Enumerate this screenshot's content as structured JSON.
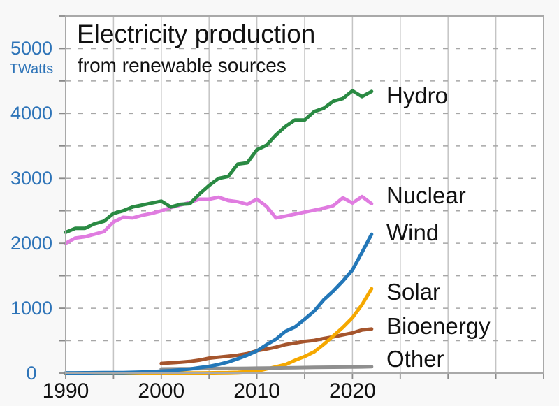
{
  "chart": {
    "title": "Electricity production",
    "subtitle": "from renewable sources",
    "y_unit": "TWatts"
  },
  "chart_data": {
    "type": "line",
    "title": "Electricity production",
    "subtitle": "from renewable sources",
    "xlabel": "",
    "ylabel": "TWatts",
    "xlim": [
      1990,
      2040
    ],
    "ylim": [
      0,
      5500
    ],
    "x_tick_labels": [
      "1990",
      "2000",
      "2010",
      "2020"
    ],
    "x_tick_label_years": [
      1990,
      2000,
      2010,
      2020
    ],
    "x_minor_tick_step_years": 5,
    "y_tick_labels": [
      "0",
      "1000",
      "2000",
      "3000",
      "4000",
      "5000"
    ],
    "y_tick_label_values": [
      0,
      1000,
      2000,
      3000,
      4000,
      5000
    ],
    "y_minor_tick_step": 500,
    "grid": {
      "vertical": "solid",
      "horizontal": "dashed-every-500"
    },
    "legend_position": "inline-right-of-lines",
    "series": [
      {
        "name": "Hydro",
        "color": "#2a8a43",
        "start_year": 1990,
        "end_year": 2022,
        "values": [
          2170,
          2230,
          2230,
          2300,
          2340,
          2460,
          2500,
          2560,
          2590,
          2620,
          2650,
          2560,
          2600,
          2610,
          2760,
          2890,
          3000,
          3030,
          3220,
          3240,
          3440,
          3510,
          3670,
          3800,
          3900,
          3900,
          4030,
          4080,
          4190,
          4230,
          4350,
          4260,
          4340
        ]
      },
      {
        "name": "Nuclear",
        "color": "#e07ce0",
        "start_year": 1990,
        "end_year": 2022,
        "values": [
          2000,
          2080,
          2100,
          2140,
          2180,
          2330,
          2400,
          2390,
          2430,
          2460,
          2500,
          2550,
          2590,
          2630,
          2680,
          2680,
          2710,
          2660,
          2640,
          2600,
          2680,
          2570,
          2390,
          2420,
          2450,
          2480,
          2510,
          2540,
          2580,
          2700,
          2620,
          2720,
          2610
        ]
      },
      {
        "name": "Wind",
        "color": "#2377b8",
        "start_year": 1990,
        "end_year": 2022,
        "values": [
          4,
          4,
          5,
          6,
          7,
          8,
          9,
          12,
          16,
          21,
          31,
          38,
          52,
          63,
          85,
          104,
          133,
          171,
          221,
          276,
          342,
          437,
          523,
          645,
          712,
          831,
          957,
          1130,
          1265,
          1420,
          1590,
          1860,
          2140
        ]
      },
      {
        "name": "Solar",
        "color": "#f5a800",
        "start_year": 1990,
        "end_year": 2022,
        "values": [
          0,
          0,
          0,
          0,
          0,
          1,
          1,
          1,
          1,
          1,
          1,
          2,
          2,
          3,
          3,
          4,
          6,
          8,
          12,
          20,
          32,
          63,
          97,
          132,
          198,
          256,
          328,
          445,
          575,
          705,
          855,
          1055,
          1300
        ]
      },
      {
        "name": "Bioenergy",
        "color": "#a5552d",
        "start_year": 2000,
        "end_year": 2022,
        "values": [
          150,
          158,
          168,
          180,
          200,
          230,
          245,
          260,
          275,
          300,
          345,
          370,
          400,
          440,
          465,
          490,
          505,
          535,
          560,
          590,
          620,
          665,
          680
        ]
      },
      {
        "name": "Other",
        "color": "#8f8f8f",
        "start_year": 2000,
        "end_year": 2022,
        "values": [
          65,
          66,
          67,
          68,
          69,
          70,
          71,
          72,
          73,
          74,
          76,
          78,
          80,
          82,
          84,
          86,
          88,
          90,
          92,
          93,
          94,
          96,
          100
        ]
      }
    ],
    "draw_order": [
      "Bioenergy",
      "Solar",
      "Other",
      "Wind",
      "Nuclear",
      "Hydro"
    ]
  },
  "colors": {
    "background": "#f8f8f8",
    "plot_background": "#ffffff",
    "frame": "#a9a9a9",
    "grid_vertical": "#c4c4c4",
    "grid_dashed": "#a6a6a6",
    "tick": "#8a8a8a",
    "axis_label_blue": "#2e74b8",
    "text": "#111111"
  }
}
